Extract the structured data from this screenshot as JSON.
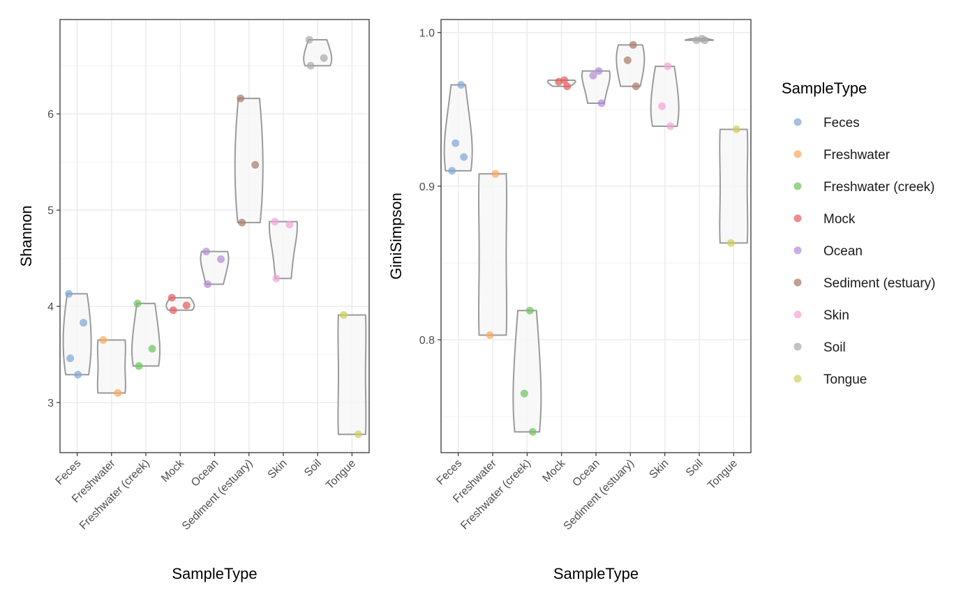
{
  "categories": [
    "Feces",
    "Freshwater",
    "Freshwater (creek)",
    "Mock",
    "Ocean",
    "Sediment (estuary)",
    "Skin",
    "Soil",
    "Tongue"
  ],
  "colors": {
    "Feces": "#7ea6d6",
    "Freshwater": "#f9a85b",
    "Freshwater (creek)": "#6cc35b",
    "Mock": "#e65a5a",
    "Ocean": "#b28ad6",
    "Sediment (estuary)": "#a97766",
    "Skin": "#f2a4d6",
    "Soil": "#a8a8a8",
    "Tongue": "#cfcf59"
  },
  "legend": {
    "title": "SampleType",
    "items": [
      "Feces",
      "Freshwater",
      "Freshwater (creek)",
      "Mock",
      "Ocean",
      "Sediment (estuary)",
      "Skin",
      "Soil",
      "Tongue"
    ]
  },
  "chart_data": [
    {
      "type": "violin",
      "xlabel": "SampleType",
      "ylabel": "Shannon",
      "ylim": [
        2.48,
        6.98
      ],
      "yticks": [
        3,
        4,
        5,
        6
      ],
      "grid": true,
      "series": [
        {
          "name": "Feces",
          "values": [
            4.13,
            3.83,
            3.46,
            3.29
          ]
        },
        {
          "name": "Freshwater",
          "values": [
            3.65,
            3.1
          ]
        },
        {
          "name": "Freshwater (creek)",
          "values": [
            4.03,
            3.56,
            3.38
          ]
        },
        {
          "name": "Mock",
          "values": [
            4.09,
            4.01,
            3.96
          ]
        },
        {
          "name": "Ocean",
          "values": [
            4.57,
            4.49,
            4.23
          ]
        },
        {
          "name": "Sediment (estuary)",
          "values": [
            6.16,
            5.47,
            4.87
          ]
        },
        {
          "name": "Skin",
          "values": [
            4.88,
            4.85,
            4.29
          ]
        },
        {
          "name": "Soil",
          "values": [
            6.77,
            6.58,
            6.5
          ]
        },
        {
          "name": "Tongue",
          "values": [
            3.91,
            2.67
          ]
        }
      ]
    },
    {
      "type": "violin",
      "xlabel": "SampleType",
      "ylabel": "GiniSimpson",
      "ylim": [
        0.7265,
        1.0085
      ],
      "yticks": [
        0.8,
        0.9,
        1.0
      ],
      "ytick_labels": [
        "0.8",
        "0.9",
        "1.0"
      ],
      "grid": true,
      "series": [
        {
          "name": "Feces",
          "values": [
            0.966,
            0.928,
            0.919,
            0.91
          ]
        },
        {
          "name": "Freshwater",
          "values": [
            0.908,
            0.803
          ]
        },
        {
          "name": "Freshwater (creek)",
          "values": [
            0.819,
            0.765,
            0.74
          ]
        },
        {
          "name": "Mock",
          "values": [
            0.969,
            0.968,
            0.965
          ]
        },
        {
          "name": "Ocean",
          "values": [
            0.975,
            0.972,
            0.954
          ]
        },
        {
          "name": "Sediment (estuary)",
          "values": [
            0.992,
            0.982,
            0.965
          ]
        },
        {
          "name": "Skin",
          "values": [
            0.978,
            0.952,
            0.939
          ]
        },
        {
          "name": "Soil",
          "values": [
            0.996,
            0.995,
            0.995
          ]
        },
        {
          "name": "Tongue",
          "values": [
            0.937,
            0.863
          ]
        }
      ]
    }
  ]
}
